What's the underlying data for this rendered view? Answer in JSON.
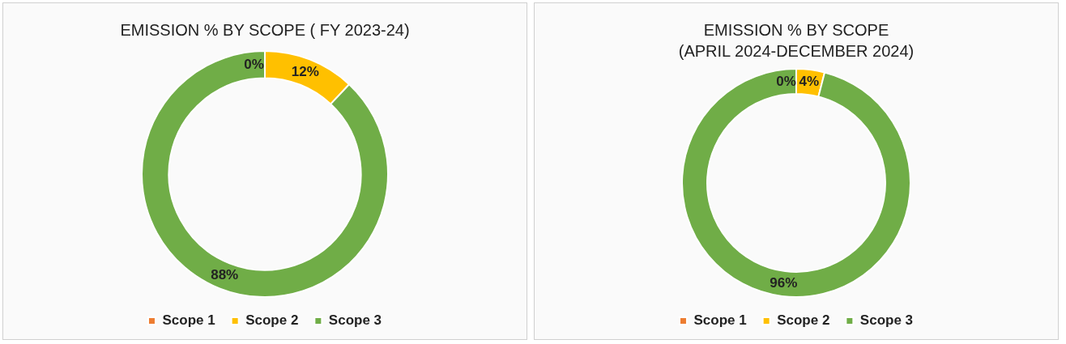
{
  "chart_data": [
    {
      "type": "donut",
      "title": "EMISSION % BY SCOPE ( FY 2023-24)",
      "categories": [
        "Scope 1",
        "Scope 2",
        "Scope 3"
      ],
      "values": [
        0,
        12,
        88
      ],
      "colors": [
        "#ed7d31",
        "#ffc000",
        "#70ad47"
      ],
      "value_labels": [
        "0%",
        "12%",
        "88%"
      ],
      "legend": "bottom"
    },
    {
      "type": "donut",
      "title": "EMISSION % BY SCOPE",
      "subtitle": "(APRIL 2024-DECEMBER 2024)",
      "categories": [
        "Scope 1",
        "Scope 2",
        "Scope 3"
      ],
      "values": [
        0,
        4,
        96
      ],
      "colors": [
        "#ed7d31",
        "#ffc000",
        "#70ad47"
      ],
      "value_labels": [
        "0%",
        "4%",
        "96%"
      ],
      "legend": "bottom"
    }
  ]
}
